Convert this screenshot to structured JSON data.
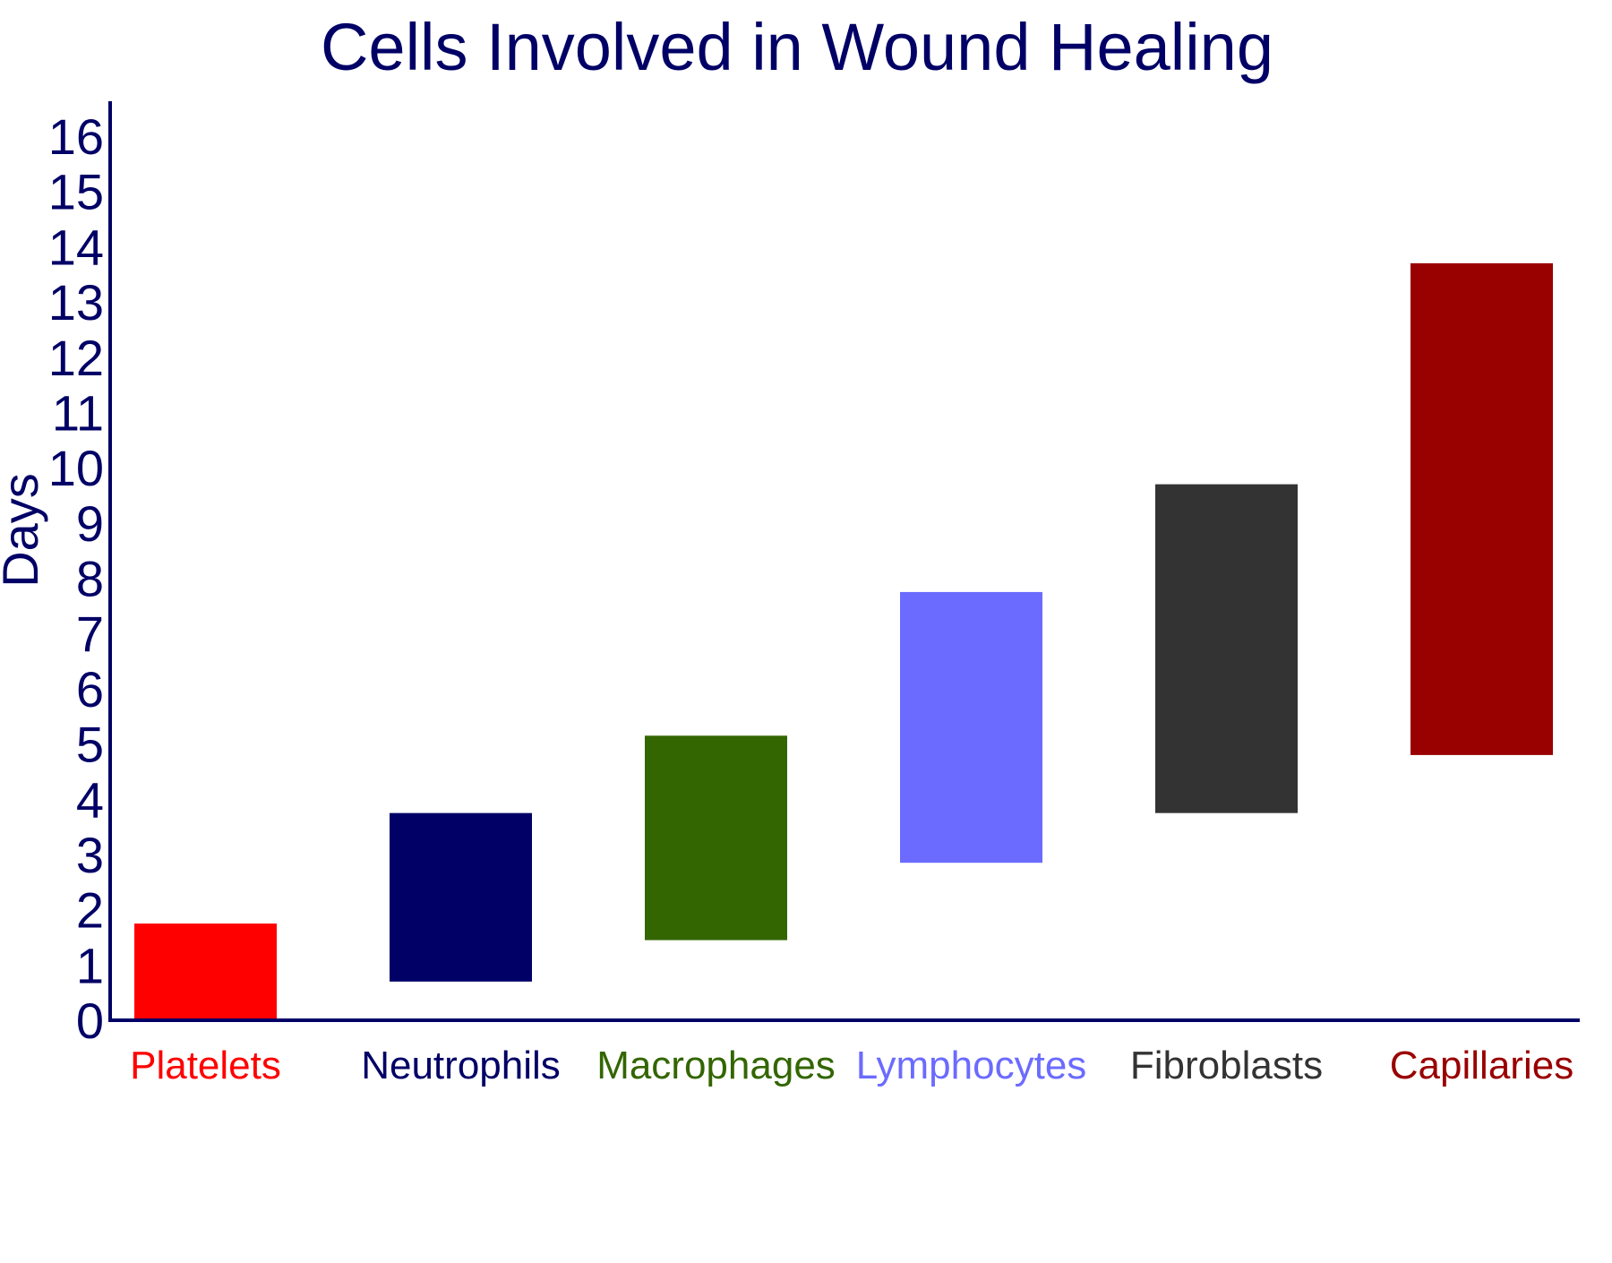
{
  "chart_data": {
    "type": "bar",
    "subtype": "floating-range",
    "title": "Cells Involved in Wound Healing",
    "ylabel": "Days",
    "xlabel": "",
    "ylim": [
      0,
      16
    ],
    "yticks": [
      "0",
      "1",
      "2",
      "3",
      "4",
      "5",
      "6",
      "7",
      "8",
      "9",
      "10",
      "11",
      "12",
      "13",
      "14",
      "15",
      "16"
    ],
    "grid": false,
    "legend": "none",
    "categories": [
      "Platelets",
      "Neutrophils",
      "Macrophages",
      "Lymphocytes",
      "Fibroblasts",
      "Capillaries"
    ],
    "ranges": [
      {
        "start": 0,
        "end": 1.75
      },
      {
        "start": 0.7,
        "end": 3.75
      },
      {
        "start": 1.45,
        "end": 5.15
      },
      {
        "start": 2.85,
        "end": 7.75
      },
      {
        "start": 3.75,
        "end": 9.7
      },
      {
        "start": 4.8,
        "end": 13.7
      }
    ],
    "colors": [
      "#ff0000",
      "#000066",
      "#336600",
      "#6b6bff",
      "#333333",
      "#990000"
    ],
    "axis_color": "#000066",
    "text_color": "#000066"
  }
}
